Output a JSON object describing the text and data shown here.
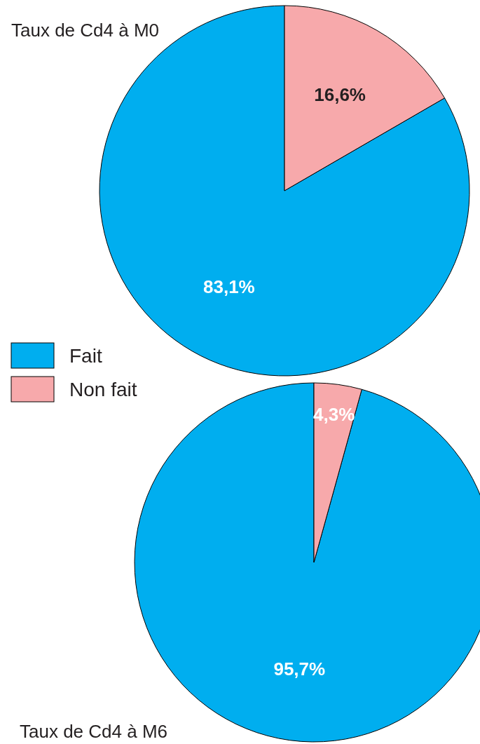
{
  "chart_data": [
    {
      "type": "pie",
      "title": "Taux de Cd4 à M0",
      "categories": [
        "Fait",
        "Non fait"
      ],
      "values": [
        83.1,
        16.6
      ],
      "colors": [
        "#00aeef",
        "#f7a9ab"
      ],
      "value_labels": [
        "83,1%",
        "16,6%"
      ],
      "legend": "bottom left"
    },
    {
      "type": "pie",
      "title": "Taux de Cd4 à M6",
      "categories": [
        null,
        null
      ],
      "values": [
        95.7,
        4.3
      ],
      "colors": [
        "#00aeef",
        "#f7a9ab"
      ],
      "value_labels": [
        "95,7%",
        "4,3%"
      ]
    }
  ]
}
